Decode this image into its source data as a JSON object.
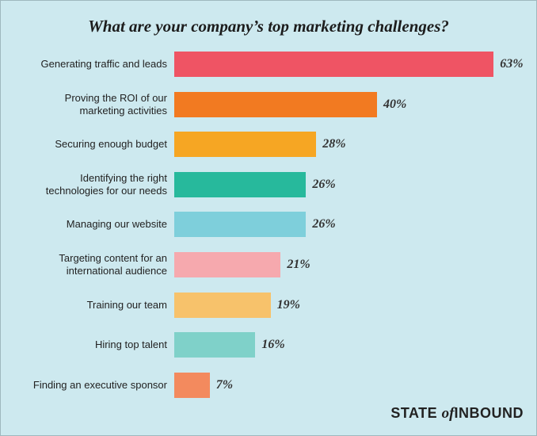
{
  "chart_data": {
    "type": "bar",
    "orientation": "horizontal",
    "title": "What are your company’s top marketing challenges?",
    "categories": [
      "Generating traffic and leads",
      "Proving the ROI of our marketing activities",
      "Securing enough budget",
      "Identifying the right technologies for our needs",
      "Managing our website",
      "Targeting content for an international audience",
      "Training our team",
      "Hiring top talent",
      "Finding an executive sponsor"
    ],
    "values": [
      63,
      40,
      28,
      26,
      26,
      21,
      19,
      16,
      7
    ],
    "value_labels": [
      "63%",
      "40%",
      "28%",
      "26%",
      "26%",
      "21%",
      "19%",
      "16%",
      "7%"
    ],
    "colors": [
      "#ef5464",
      "#f27a21",
      "#f6a623",
      "#27b99c",
      "#7ecfdb",
      "#f6a9ae",
      "#f7c26b",
      "#7fd1c9",
      "#f38a5e"
    ]
  },
  "brand": {
    "first": "STATE",
    "middle": "of",
    "last": "INBOUND"
  }
}
